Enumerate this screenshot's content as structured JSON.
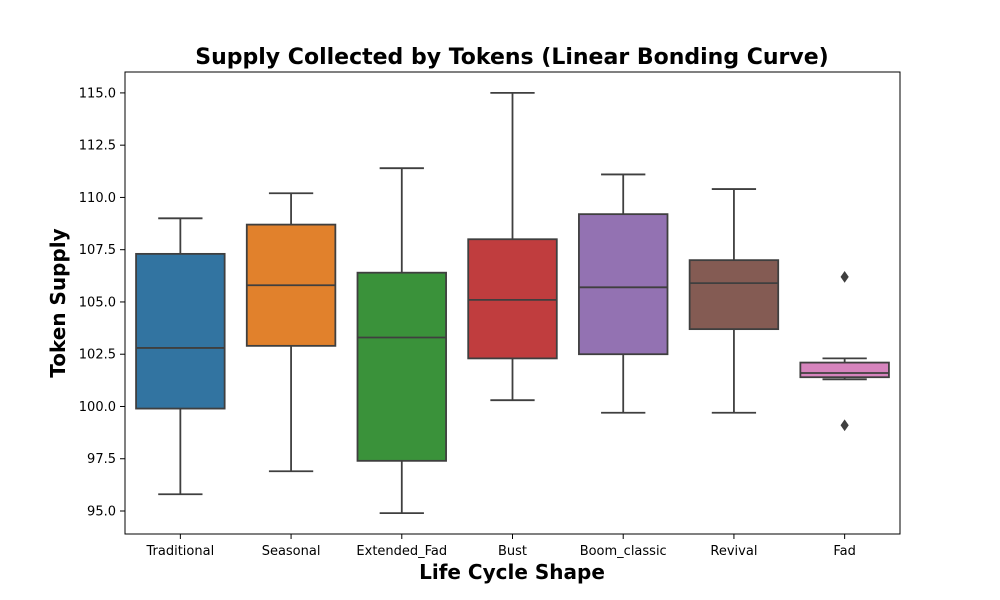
{
  "chart_data": {
    "type": "box",
    "title": "Supply Collected by Tokens (Linear Bonding Curve)",
    "xlabel": "Life Cycle Shape",
    "ylabel": "Token Supply",
    "ylim": [
      93.9,
      116.0
    ],
    "yticks": [
      95.0,
      97.5,
      100.0,
      102.5,
      105.0,
      107.5,
      110.0,
      112.5,
      115.0
    ],
    "ytick_labels": [
      "95.0",
      "97.5",
      "100.0",
      "102.5",
      "105.0",
      "107.5",
      "110.0",
      "112.5",
      "115.0"
    ],
    "grid": false,
    "categories": [
      "Traditional",
      "Seasonal",
      "Extended_Fad",
      "Bust",
      "Boom_classic",
      "Revival",
      "Fad"
    ],
    "colors": [
      "#3274a1",
      "#e1812c",
      "#3a923a",
      "#c03d3e",
      "#9372b2",
      "#845b53",
      "#d684bd"
    ],
    "boxes": [
      {
        "name": "Traditional",
        "whisker_low": 95.8,
        "q1": 99.9,
        "median": 102.8,
        "q3": 107.3,
        "whisker_high": 109.0,
        "outliers": []
      },
      {
        "name": "Seasonal",
        "whisker_low": 96.9,
        "q1": 102.9,
        "median": 105.8,
        "q3": 108.7,
        "whisker_high": 110.2,
        "outliers": []
      },
      {
        "name": "Extended_Fad",
        "whisker_low": 94.9,
        "q1": 97.4,
        "median": 103.3,
        "q3": 106.4,
        "whisker_high": 111.4,
        "outliers": []
      },
      {
        "name": "Bust",
        "whisker_low": 100.3,
        "q1": 102.3,
        "median": 105.1,
        "q3": 108.0,
        "whisker_high": 115.0,
        "outliers": []
      },
      {
        "name": "Boom_classic",
        "whisker_low": 99.7,
        "q1": 102.5,
        "median": 105.7,
        "q3": 109.2,
        "whisker_high": 111.1,
        "outliers": []
      },
      {
        "name": "Revival",
        "whisker_low": 99.7,
        "q1": 103.7,
        "median": 105.9,
        "q3": 107.0,
        "whisker_high": 110.4,
        "outliers": []
      },
      {
        "name": "Fad",
        "whisker_low": 101.3,
        "q1": 101.4,
        "median": 101.6,
        "q3": 102.1,
        "whisker_high": 102.3,
        "outliers": [
          106.2,
          99.1
        ]
      }
    ]
  }
}
